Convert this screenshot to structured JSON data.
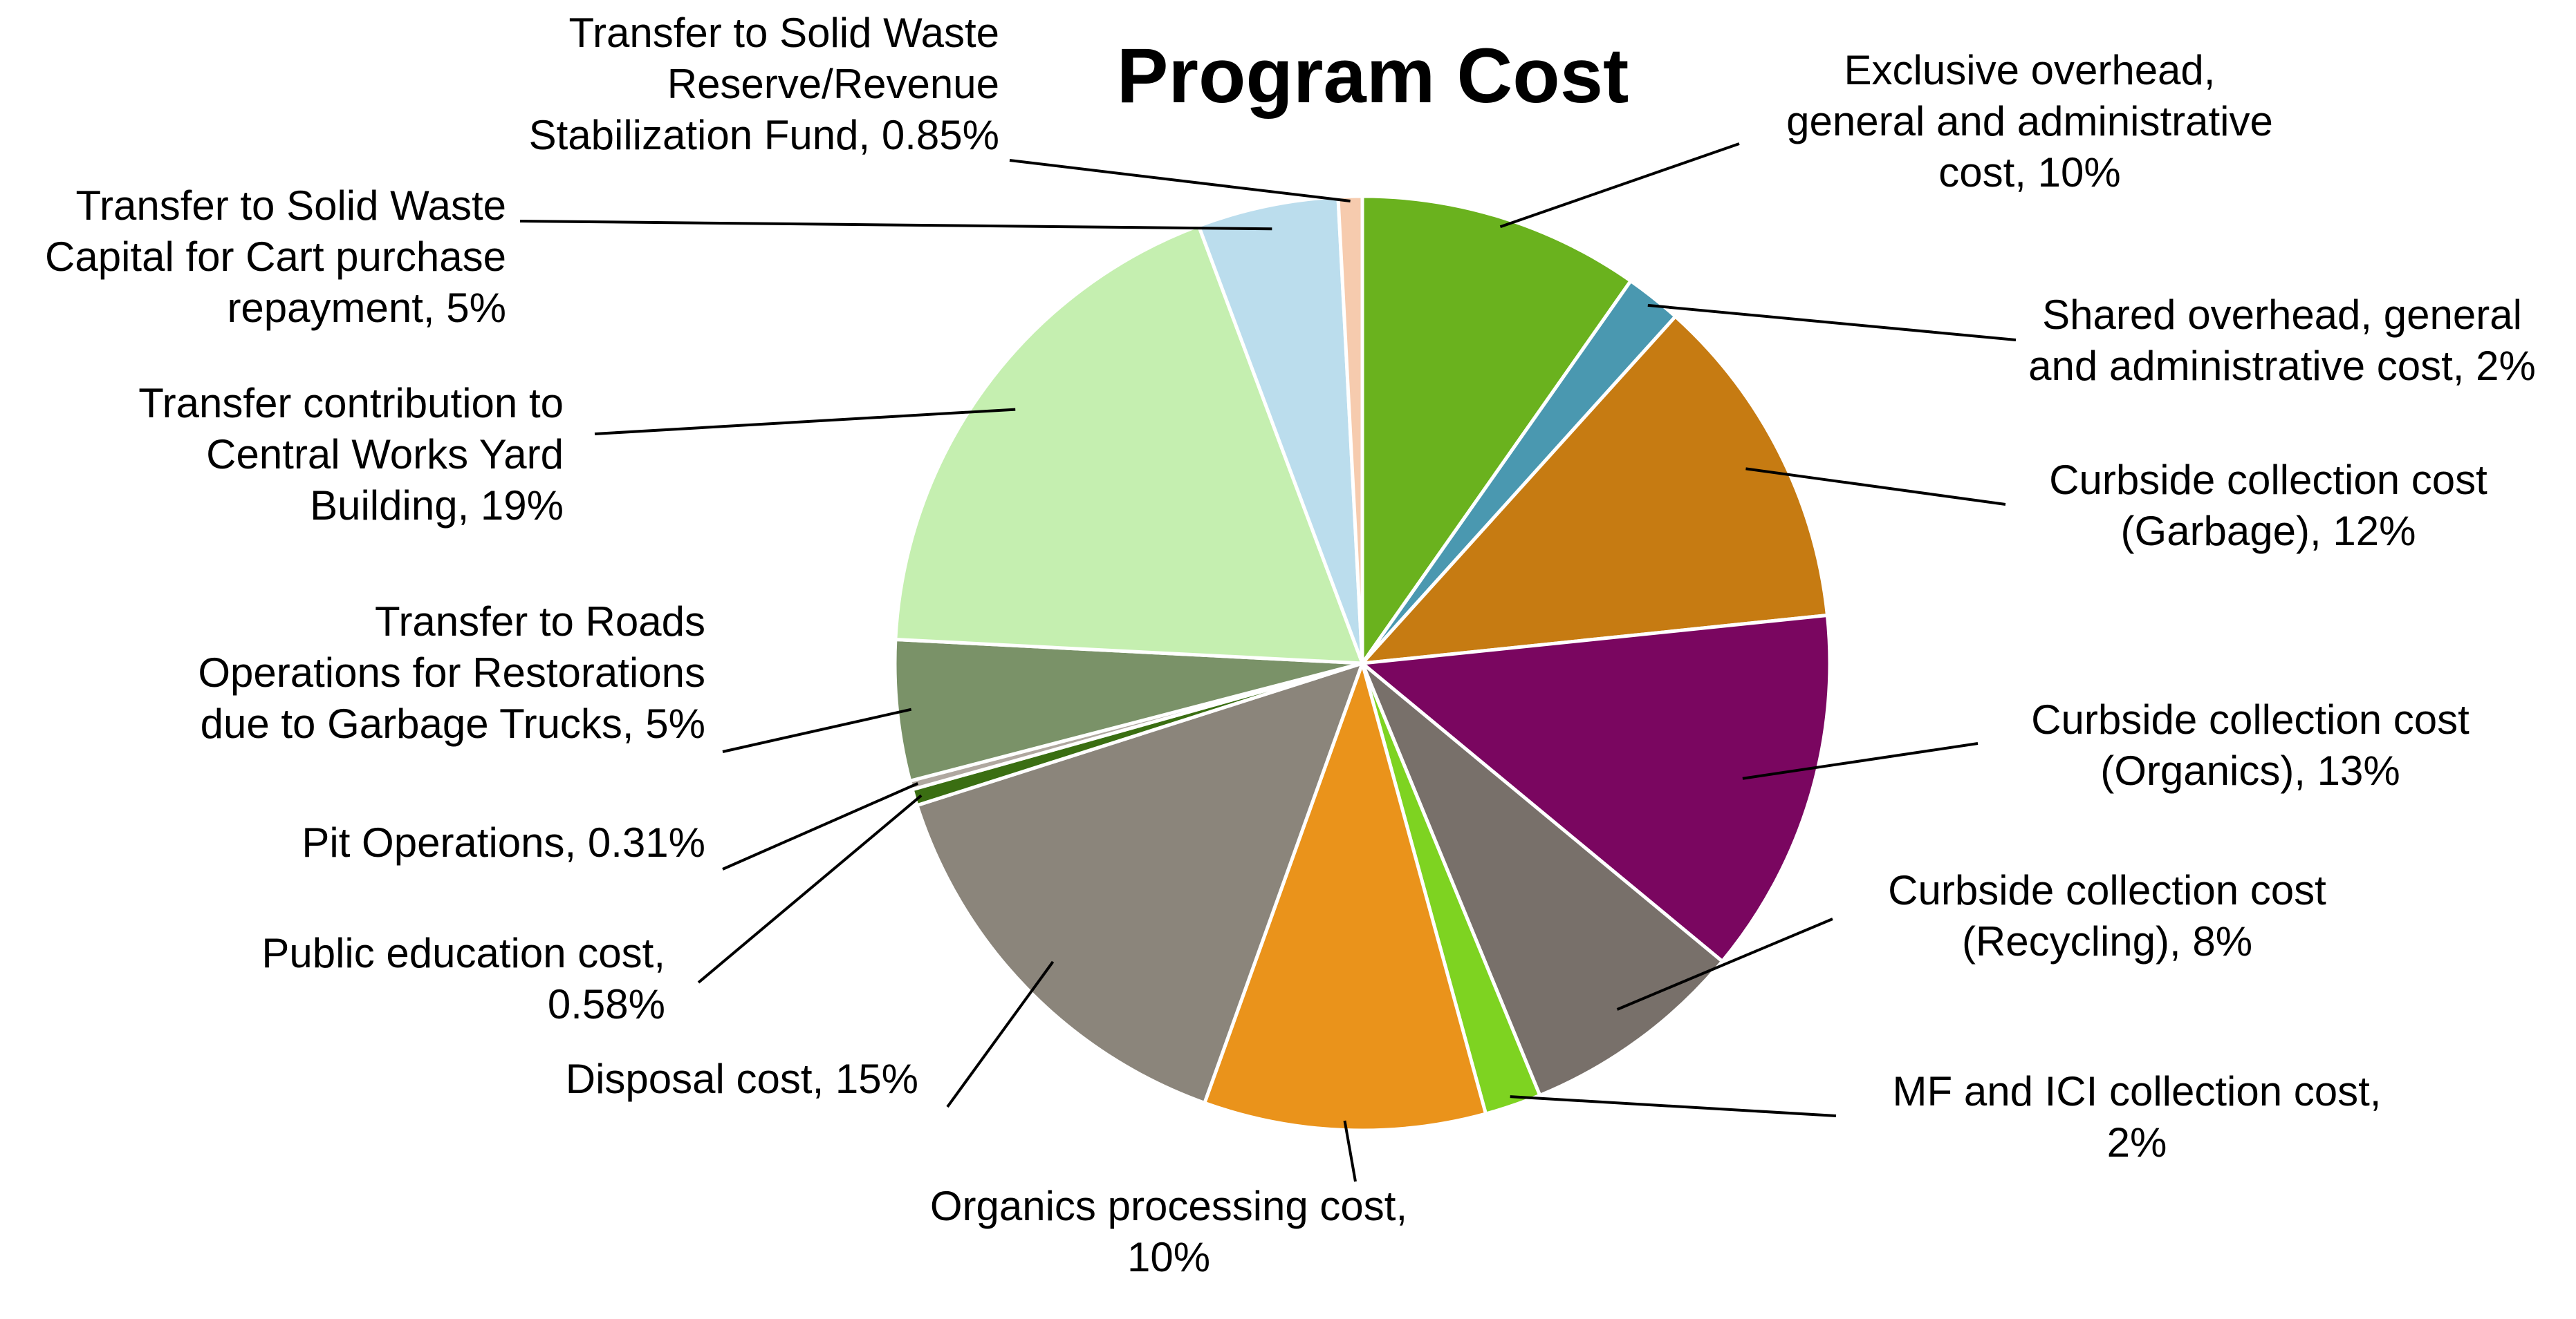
{
  "chart_data": {
    "type": "pie",
    "title": "Program Cost",
    "slices": [
      {
        "name": "Exclusive overhead, general and administrative cost",
        "value": 10,
        "value_label": "10%",
        "color": "#6AB21E",
        "label_lines": [
          "Exclusive overhead,",
          "general and administrative",
          "cost, 10%"
        ]
      },
      {
        "name": "Shared overhead, general and administrative cost",
        "value": 2,
        "value_label": "2%",
        "color": "#4A98B0",
        "label_lines": [
          "Shared overhead, general",
          "and administrative cost, 2%"
        ]
      },
      {
        "name": "Curbside collection cost (Garbage)",
        "value": 12,
        "value_label": "12%",
        "color": "#C67B12",
        "label_lines": [
          "Curbside collection cost",
          "(Garbage), 12%"
        ]
      },
      {
        "name": "Curbside collection cost (Organics)",
        "value": 13,
        "value_label": "13%",
        "color": "#7A0660",
        "label_lines": [
          "Curbside collection cost",
          "(Organics), 13%"
        ]
      },
      {
        "name": "Curbside collection cost (Recycling)",
        "value": 8,
        "value_label": "8%",
        "color": "#78706A",
        "label_lines": [
          "Curbside collection cost",
          "(Recycling), 8%"
        ]
      },
      {
        "name": "MF and ICI collection cost",
        "value": 2,
        "value_label": "2%",
        "color": "#7ED321",
        "label_lines": [
          "MF and ICI collection cost,",
          "2%"
        ]
      },
      {
        "name": "Organics processing cost",
        "value": 10,
        "value_label": "10%",
        "color": "#EA931B",
        "label_lines": [
          "Organics processing cost,",
          "10%"
        ]
      },
      {
        "name": "Disposal cost",
        "value": 15,
        "value_label": "15%",
        "color": "#8B857B",
        "label_lines": [
          "Disposal cost, 15%"
        ]
      },
      {
        "name": "Public education cost",
        "value": 0.58,
        "value_label": "0.58%",
        "color": "#3A6E12",
        "label_lines": [
          "Public education cost,",
          "0.58%"
        ]
      },
      {
        "name": "Pit Operations",
        "value": 0.31,
        "value_label": "0.31%",
        "color": "#B0A8A0",
        "label_lines": [
          "Pit Operations, 0.31%"
        ]
      },
      {
        "name": "Transfer to Roads Operations for Restorations due to Garbage Trucks",
        "value": 5,
        "value_label": "5%",
        "color": "#7A9268",
        "label_lines": [
          "Transfer to Roads",
          "Operations for Restorations",
          "due to Garbage Trucks, 5%"
        ]
      },
      {
        "name": "Transfer contribution to Central Works Yard Building",
        "value": 19,
        "value_label": "19%",
        "color": "#C5EFB0",
        "label_lines": [
          "Transfer contribution to",
          "Central Works Yard",
          "Building, 19%"
        ]
      },
      {
        "name": "Transfer to Solid Waste Capital for Cart purchase repayment",
        "value": 5,
        "value_label": "5%",
        "color": "#BBDDED",
        "label_lines": [
          "Transfer to Solid Waste",
          "Capital for Cart purchase",
          "repayment, 5%"
        ]
      },
      {
        "name": "Transfer to Solid Waste Reserve/Revenue Stabilization Fund",
        "value": 0.85,
        "value_label": "0.85%",
        "color": "#F6CBAE",
        "label_lines": [
          "Transfer to Solid Waste",
          "Reserve/Revenue",
          "Stabilization Fund, 0.85%"
        ]
      }
    ],
    "start_angle": "12 o'clock",
    "direction": "clockwise",
    "legend": "none (data labels with leader lines)"
  }
}
